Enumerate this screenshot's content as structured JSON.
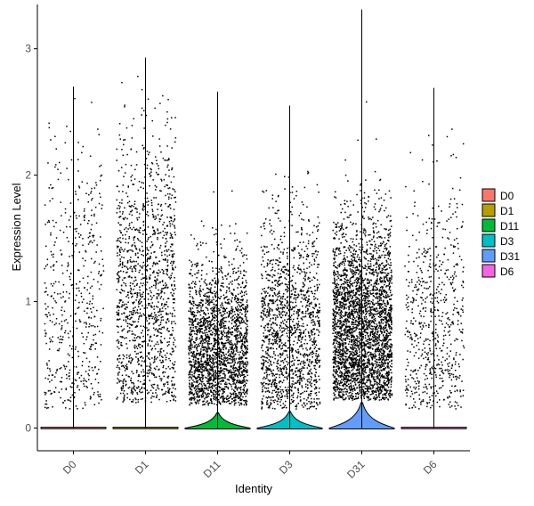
{
  "chart_data": {
    "type": "violin",
    "xlabel": "Identity",
    "ylabel": "Expression Level",
    "ylim": [
      -0.18,
      3.35
    ],
    "yticks": [
      0,
      1,
      2,
      3
    ],
    "legend_placement": "right",
    "grid": false,
    "series": [
      {
        "name": "D0",
        "color": "#F8766D",
        "max": 2.7,
        "zero_violin_height": 0.0
      },
      {
        "name": "D1",
        "color": "#B79F00",
        "max": 2.93,
        "zero_violin_height": 0.0
      },
      {
        "name": "D11",
        "color": "#00BA38",
        "max": 2.66,
        "zero_violin_height": 0.12
      },
      {
        "name": "D3",
        "color": "#00BFC4",
        "max": 2.55,
        "zero_violin_height": 0.13
      },
      {
        "name": "D31",
        "color": "#619CFF",
        "max": 3.31,
        "zero_violin_height": 0.2
      },
      {
        "name": "D6",
        "color": "#F564E3",
        "max": 2.69,
        "zero_violin_height": 0.0
      }
    ]
  }
}
